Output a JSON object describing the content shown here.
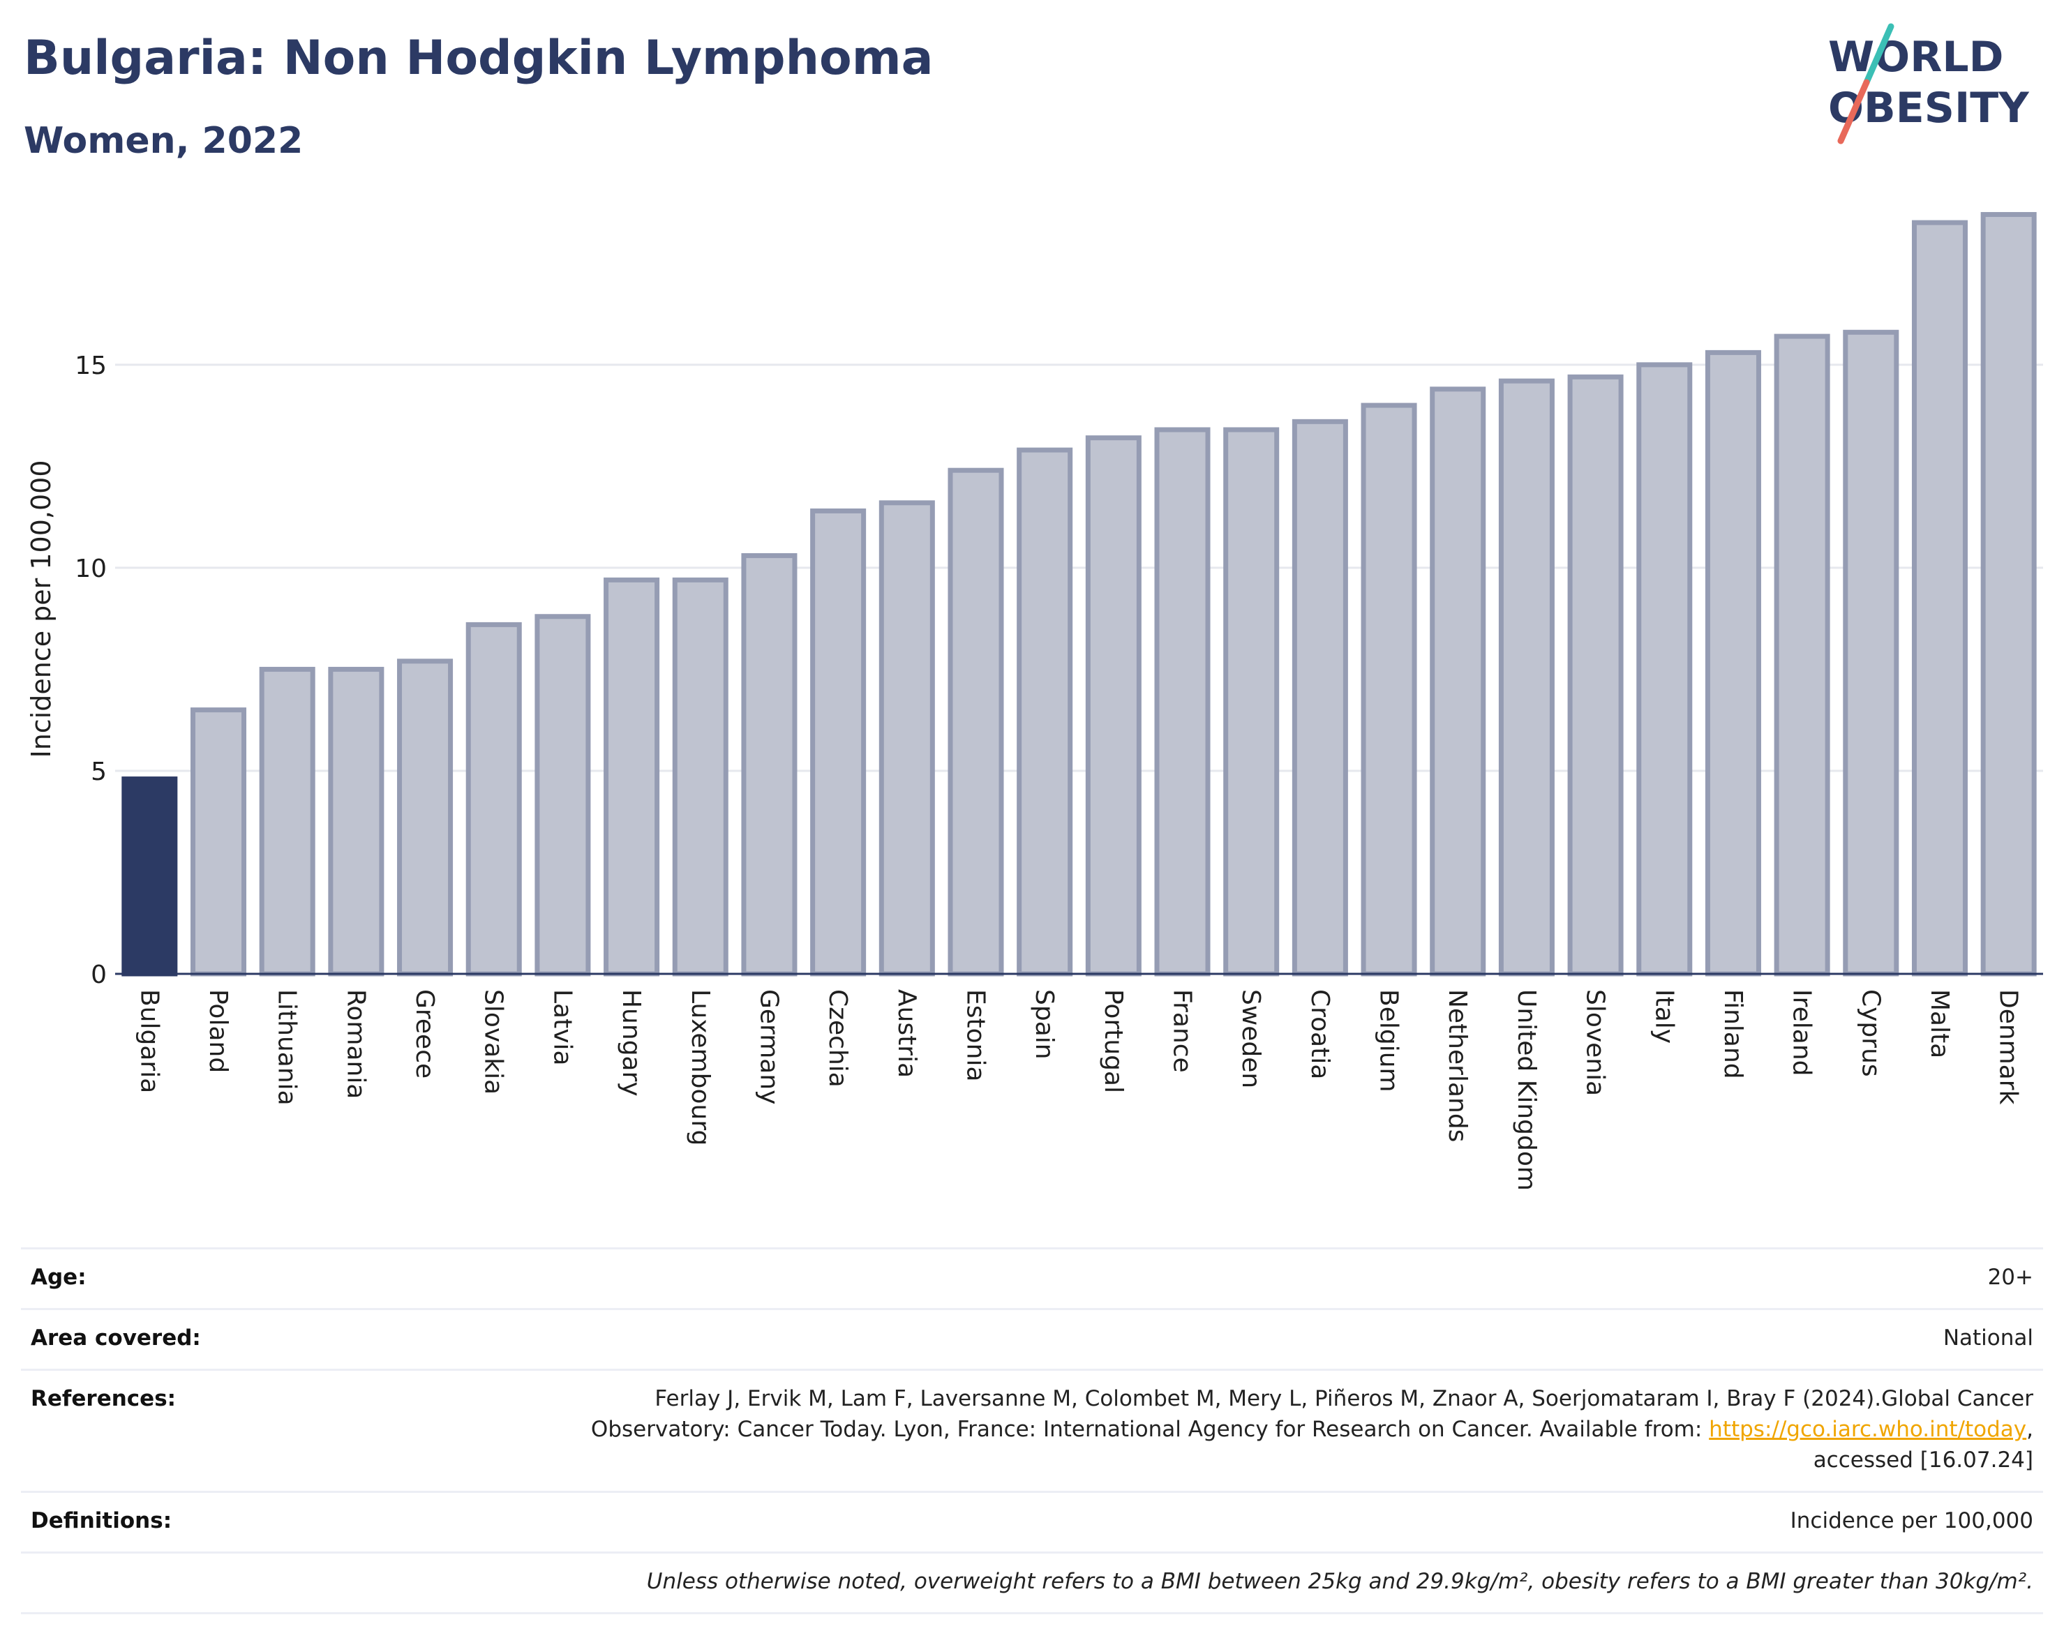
{
  "header": {
    "title": "Bulgaria: Non Hodgkin Lymphoma",
    "subtitle": "Women, 2022"
  },
  "logo": {
    "line1": "WORLD",
    "line2": "OBESITY",
    "text_color": "#2c3a64",
    "slash_colors": [
      "#e8695a",
      "#3bbfb5"
    ]
  },
  "chart_data": {
    "type": "bar",
    "title": "Bulgaria: Non Hodgkin Lymphoma",
    "subtitle": "Women, 2022",
    "xlabel": "",
    "ylabel": "Incidence per 100,000",
    "ylim": [
      0,
      19
    ],
    "yticks": [
      0,
      5,
      10,
      15
    ],
    "grid": true,
    "highlight_color": "#2c3a64",
    "bar_color": "#bfc3d0",
    "bar_border_color": "#959cb3",
    "highlight_category": "Bulgaria",
    "categories": [
      "Bulgaria",
      "Poland",
      "Lithuania",
      "Romania",
      "Greece",
      "Slovakia",
      "Latvia",
      "Hungary",
      "Luxembourg",
      "Germany",
      "Czechia",
      "Austria",
      "Estonia",
      "Spain",
      "Portugal",
      "France",
      "Sweden",
      "Croatia",
      "Belgium",
      "Netherlands",
      "United Kingdom",
      "Slovenia",
      "Italy",
      "Finland",
      "Ireland",
      "Cyprus",
      "Malta",
      "Denmark"
    ],
    "values": [
      4.8,
      6.5,
      7.5,
      7.5,
      7.7,
      8.6,
      8.8,
      9.7,
      9.7,
      10.3,
      11.4,
      11.6,
      12.4,
      12.9,
      13.2,
      13.4,
      13.4,
      13.6,
      14.0,
      14.4,
      14.6,
      14.7,
      15.0,
      15.3,
      15.7,
      15.8,
      18.5,
      18.7
    ]
  },
  "meta": {
    "age_label": "Age:",
    "age_value": "20+",
    "area_label": "Area covered:",
    "area_value": "National",
    "references_label": "References:",
    "references_line1": "Ferlay J, Ervik M, Lam F, Laversanne M, Colombet M, Mery L, Piñeros M, Znaor A, Soerjomataram I, Bray F (2024).Global Cancer",
    "references_line2_pre": "Observatory: Cancer Today. Lyon, France: International Agency for Research on Cancer. Available from: ",
    "references_link": "https://gco.iarc.who.int/today",
    "references_line2_post": ",",
    "references_line3": "accessed [16.07.24]",
    "definitions_label": "Definitions:",
    "definitions_value": "Incidence per 100,000",
    "note": "Unless otherwise noted, overweight refers to a BMI between 25kg and 29.9kg/m², obesity refers to a BMI greater than 30kg/m²."
  }
}
